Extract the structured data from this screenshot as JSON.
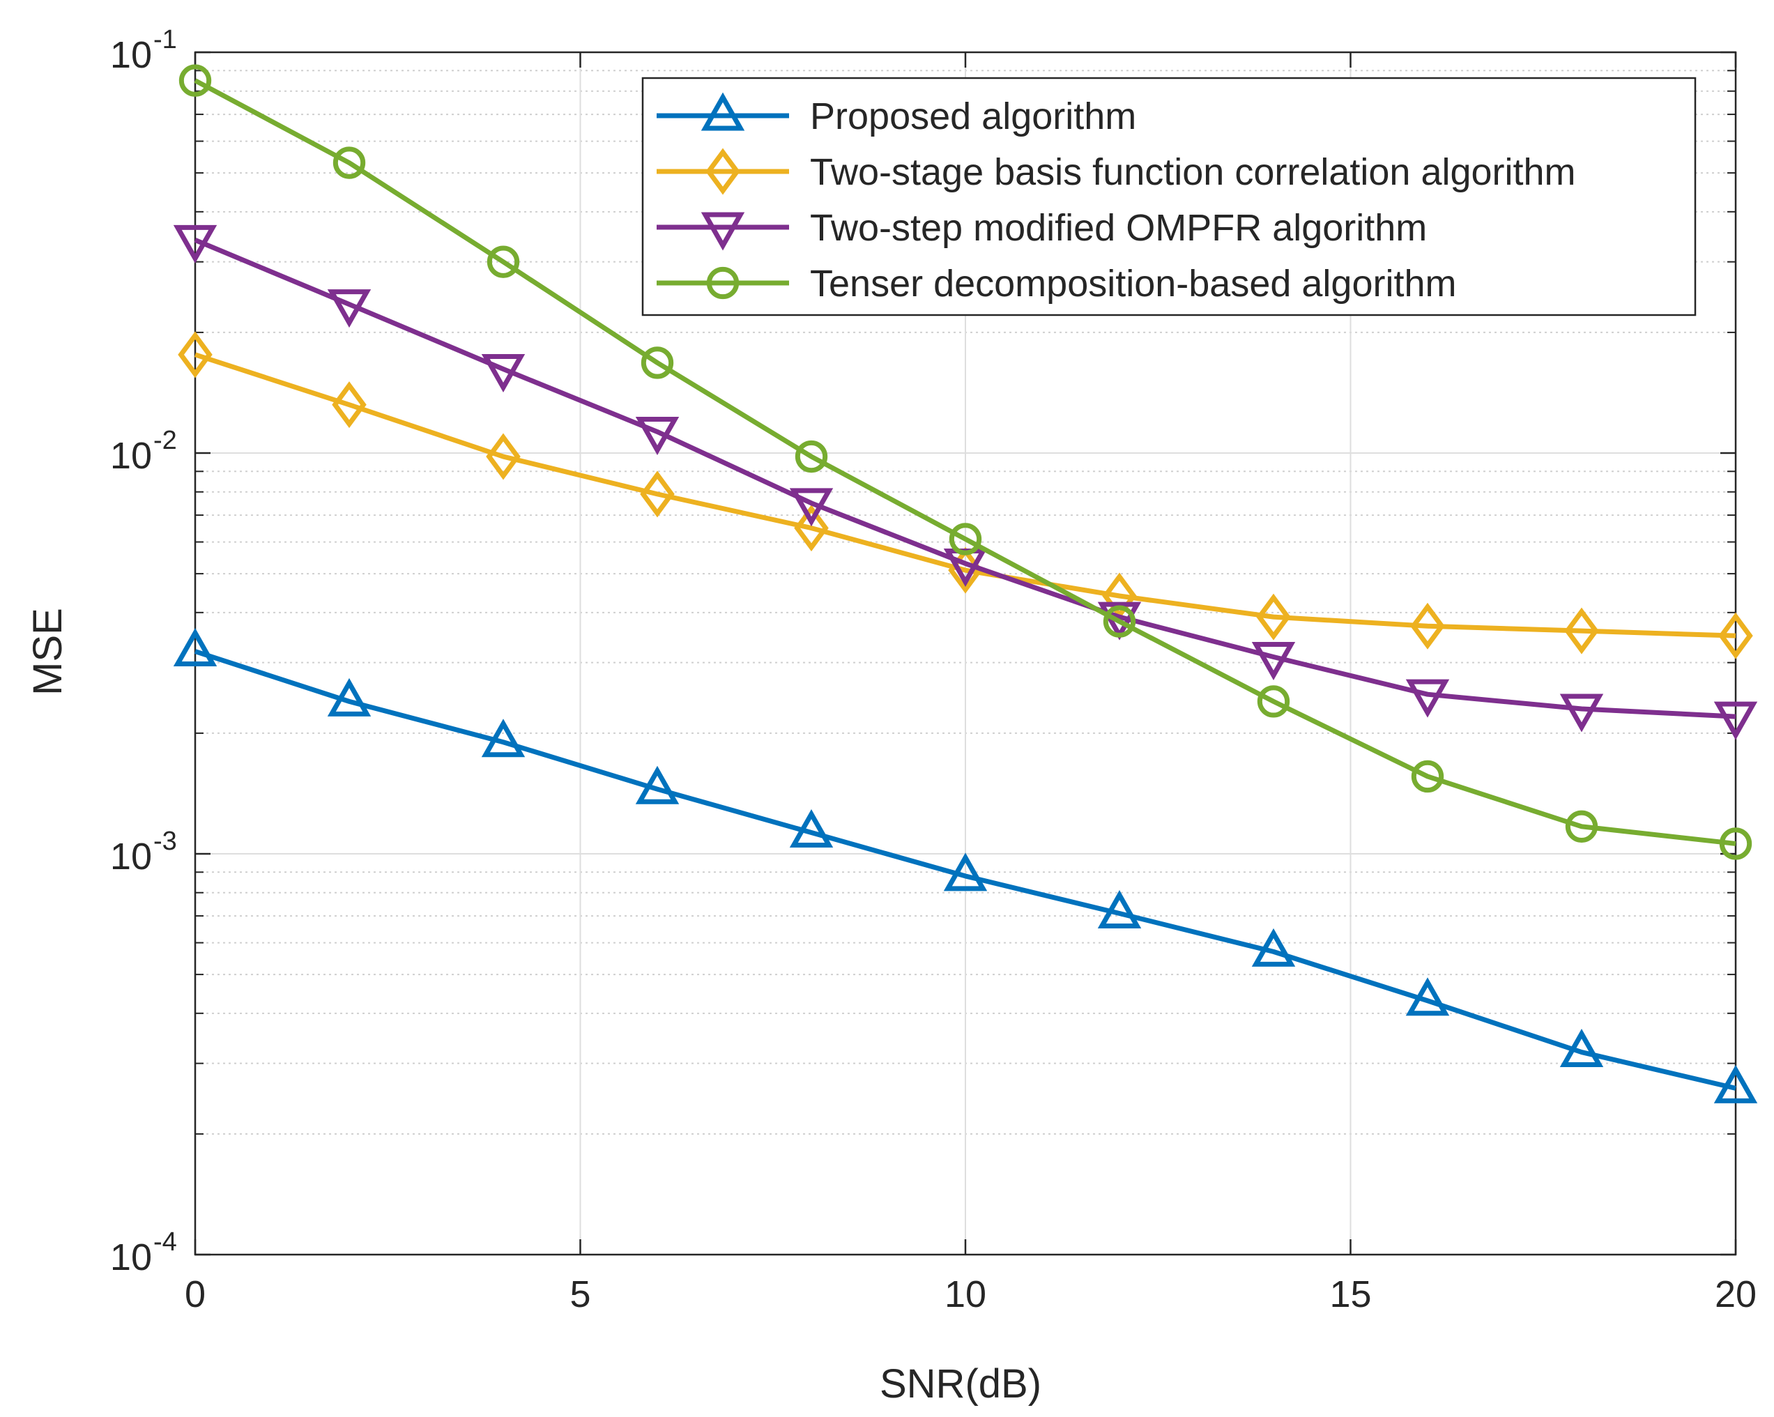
{
  "chart_data": {
    "type": "line",
    "title": "",
    "xlabel": "SNR(dB)",
    "ylabel": "MSE",
    "xlim": [
      0,
      20
    ],
    "ylim": [
      0.0001,
      0.1
    ],
    "yscale": "log",
    "grid": true,
    "legend_position": "top-right",
    "x_ticks": [
      {
        "value": 0,
        "label": "0"
      },
      {
        "value": 5,
        "label": "5"
      },
      {
        "value": 10,
        "label": "10"
      },
      {
        "value": 15,
        "label": "15"
      },
      {
        "value": 20,
        "label": "20"
      }
    ],
    "y_ticks": [
      {
        "value": 0.1,
        "base": "10",
        "exp": "-1"
      },
      {
        "value": 0.01,
        "base": "10",
        "exp": "-2"
      },
      {
        "value": 0.001,
        "base": "10",
        "exp": "-3"
      },
      {
        "value": 0.0001,
        "base": "10",
        "exp": "-4"
      }
    ],
    "x": [
      0,
      2,
      4,
      6,
      8,
      10,
      12,
      14,
      16,
      18,
      20
    ],
    "series": [
      {
        "name": "Proposed algorithm",
        "marker": "triangle-up",
        "color": "#0072BD",
        "values": [
          0.0032,
          0.0024,
          0.0019,
          0.00145,
          0.00113,
          0.00088,
          0.00071,
          0.00057,
          0.00043,
          0.00032,
          0.00026
        ]
      },
      {
        "name": "Two-stage basis function correlation algorithm",
        "marker": "diamond",
        "color": "#EDB120",
        "values": [
          0.0176,
          0.0132,
          0.0098,
          0.0079,
          0.0065,
          0.0051,
          0.0044,
          0.0039,
          0.0037,
          0.0036,
          0.0035
        ]
      },
      {
        "name": "Two-step modified OMPFR algorithm",
        "marker": "triangle-down",
        "color": "#7E2F8E",
        "values": [
          0.034,
          0.0235,
          0.0162,
          0.0113,
          0.0075,
          0.0053,
          0.0039,
          0.0031,
          0.0025,
          0.0023,
          0.0022
        ]
      },
      {
        "name": "Tenser decomposition-based algorithm",
        "marker": "circle",
        "color": "#77AC30",
        "values": [
          0.085,
          0.053,
          0.03,
          0.0168,
          0.0098,
          0.0061,
          0.0038,
          0.0024,
          0.00156,
          0.00117,
          0.00106
        ]
      }
    ]
  }
}
